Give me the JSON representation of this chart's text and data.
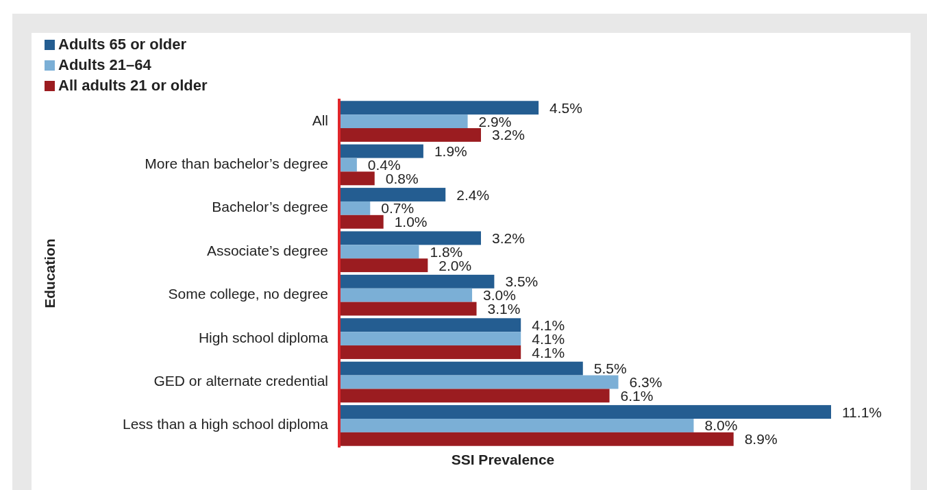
{
  "chart_data": {
    "type": "bar",
    "orientation": "horizontal",
    "xlabel": "SSI Prevalence",
    "ylabel": "Education",
    "legend": "top left",
    "categories": [
      "All",
      "More than bachelor’s degree",
      "Bachelor’s degree",
      "Associate’s degree",
      "Some college, no degree",
      "High school diploma",
      "GED or alternate credential",
      "Less than a high school diploma"
    ],
    "series": [
      {
        "name": "Adults 65 or older",
        "color": "#245d91",
        "values": [
          4.5,
          1.9,
          2.4,
          3.2,
          3.5,
          4.1,
          5.5,
          11.1
        ],
        "value_labels": [
          "4.5%",
          "1.9%",
          "2.4%",
          "3.2%",
          "3.5%",
          "4.1%",
          "5.5%",
          "11.1%"
        ]
      },
      {
        "name": "Adults 21–64",
        "color": "#7bafd6",
        "values": [
          2.9,
          0.4,
          0.7,
          1.8,
          3.0,
          4.1,
          6.3,
          8.0
        ],
        "value_labels": [
          "2.9%",
          "0.4%",
          "0.7%",
          "1.8%",
          "3.0%",
          "4.1%",
          "6.3%",
          "8.0%"
        ]
      },
      {
        "name": "All adults 21 or older",
        "color": "#9b1c20",
        "values": [
          3.2,
          0.8,
          1.0,
          2.0,
          3.1,
          4.1,
          6.1,
          8.9
        ],
        "value_labels": [
          "3.2%",
          "0.8%",
          "1.0%",
          "2.0%",
          "3.1%",
          "4.1%",
          "6.1%",
          "8.9%"
        ]
      }
    ]
  }
}
